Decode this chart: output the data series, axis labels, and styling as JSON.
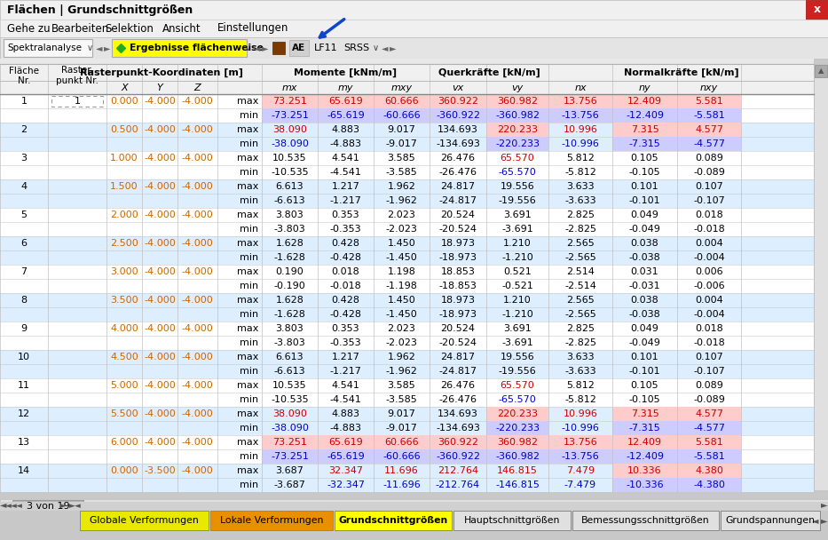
{
  "title": "Flächen | Grundschnittgrößen",
  "menu_items": [
    "Gehe zu",
    "Bearbeiten",
    "Selektion",
    "Ansicht",
    "Einstellungen"
  ],
  "toolbar_label": "Ergebnisse flächenweise",
  "tab_items": [
    "Globale Verformungen",
    "Lokale Verformungen",
    "Grundschnittgrößen",
    "Hauptschnittgrößen",
    "Bemessungsschnittgrößen",
    "Grundspannungen"
  ],
  "tab_colors": [
    "#e8e800",
    "#e89000",
    "#ffff00",
    "#e0e0e0",
    "#e0e0e0",
    "#e0e0e0"
  ],
  "page_label": "3 von 19",
  "rows": [
    [
      1,
      1,
      "0.000",
      "-4.000",
      "-4.000",
      "max",
      "73.251",
      "65.619",
      "60.666",
      "360.922",
      "360.982",
      "13.756",
      "12.409",
      "5.581"
    ],
    [
      null,
      null,
      null,
      null,
      null,
      "min",
      "-73.251",
      "-65.619",
      "-60.666",
      "-360.922",
      "-360.982",
      "-13.756",
      "-12.409",
      "-5.581"
    ],
    [
      2,
      null,
      "0.500",
      "-4.000",
      "-4.000",
      "max",
      "38.090",
      "4.883",
      "9.017",
      "134.693",
      "220.233",
      "10.996",
      "7.315",
      "4.577"
    ],
    [
      null,
      null,
      null,
      null,
      null,
      "min",
      "-38.090",
      "-4.883",
      "-9.017",
      "-134.693",
      "-220.233",
      "-10.996",
      "-7.315",
      "-4.577"
    ],
    [
      3,
      null,
      "1.000",
      "-4.000",
      "-4.000",
      "max",
      "10.535",
      "4.541",
      "3.585",
      "26.476",
      "65.570",
      "5.812",
      "0.105",
      "0.089"
    ],
    [
      null,
      null,
      null,
      null,
      null,
      "min",
      "-10.535",
      "-4.541",
      "-3.585",
      "-26.476",
      "-65.570",
      "-5.812",
      "-0.105",
      "-0.089"
    ],
    [
      4,
      null,
      "1.500",
      "-4.000",
      "-4.000",
      "max",
      "6.613",
      "1.217",
      "1.962",
      "24.817",
      "19.556",
      "3.633",
      "0.101",
      "0.107"
    ],
    [
      null,
      null,
      null,
      null,
      null,
      "min",
      "-6.613",
      "-1.217",
      "-1.962",
      "-24.817",
      "-19.556",
      "-3.633",
      "-0.101",
      "-0.107"
    ],
    [
      5,
      null,
      "2.000",
      "-4.000",
      "-4.000",
      "max",
      "3.803",
      "0.353",
      "2.023",
      "20.524",
      "3.691",
      "2.825",
      "0.049",
      "0.018"
    ],
    [
      null,
      null,
      null,
      null,
      null,
      "min",
      "-3.803",
      "-0.353",
      "-2.023",
      "-20.524",
      "-3.691",
      "-2.825",
      "-0.049",
      "-0.018"
    ],
    [
      6,
      null,
      "2.500",
      "-4.000",
      "-4.000",
      "max",
      "1.628",
      "0.428",
      "1.450",
      "18.973",
      "1.210",
      "2.565",
      "0.038",
      "0.004"
    ],
    [
      null,
      null,
      null,
      null,
      null,
      "min",
      "-1.628",
      "-0.428",
      "-1.450",
      "-18.973",
      "-1.210",
      "-2.565",
      "-0.038",
      "-0.004"
    ],
    [
      7,
      null,
      "3.000",
      "-4.000",
      "-4.000",
      "max",
      "0.190",
      "0.018",
      "1.198",
      "18.853",
      "0.521",
      "2.514",
      "0.031",
      "0.006"
    ],
    [
      null,
      null,
      null,
      null,
      null,
      "min",
      "-0.190",
      "-0.018",
      "-1.198",
      "-18.853",
      "-0.521",
      "-2.514",
      "-0.031",
      "-0.006"
    ],
    [
      8,
      null,
      "3.500",
      "-4.000",
      "-4.000",
      "max",
      "1.628",
      "0.428",
      "1.450",
      "18.973",
      "1.210",
      "2.565",
      "0.038",
      "0.004"
    ],
    [
      null,
      null,
      null,
      null,
      null,
      "min",
      "-1.628",
      "-0.428",
      "-1.450",
      "-18.973",
      "-1.210",
      "-2.565",
      "-0.038",
      "-0.004"
    ],
    [
      9,
      null,
      "4.000",
      "-4.000",
      "-4.000",
      "max",
      "3.803",
      "0.353",
      "2.023",
      "20.524",
      "3.691",
      "2.825",
      "0.049",
      "0.018"
    ],
    [
      null,
      null,
      null,
      null,
      null,
      "min",
      "-3.803",
      "-0.353",
      "-2.023",
      "-20.524",
      "-3.691",
      "-2.825",
      "-0.049",
      "-0.018"
    ],
    [
      10,
      null,
      "4.500",
      "-4.000",
      "-4.000",
      "max",
      "6.613",
      "1.217",
      "1.962",
      "24.817",
      "19.556",
      "3.633",
      "0.101",
      "0.107"
    ],
    [
      null,
      null,
      null,
      null,
      null,
      "min",
      "-6.613",
      "-1.217",
      "-1.962",
      "-24.817",
      "-19.556",
      "-3.633",
      "-0.101",
      "-0.107"
    ],
    [
      11,
      null,
      "5.000",
      "-4.000",
      "-4.000",
      "max",
      "10.535",
      "4.541",
      "3.585",
      "26.476",
      "65.570",
      "5.812",
      "0.105",
      "0.089"
    ],
    [
      null,
      null,
      null,
      null,
      null,
      "min",
      "-10.535",
      "-4.541",
      "-3.585",
      "-26.476",
      "-65.570",
      "-5.812",
      "-0.105",
      "-0.089"
    ],
    [
      12,
      null,
      "5.500",
      "-4.000",
      "-4.000",
      "max",
      "38.090",
      "4.883",
      "9.017",
      "134.693",
      "220.233",
      "10.996",
      "7.315",
      "4.577"
    ],
    [
      null,
      null,
      null,
      null,
      null,
      "min",
      "-38.090",
      "-4.883",
      "-9.017",
      "-134.693",
      "-220.233",
      "-10.996",
      "-7.315",
      "-4.577"
    ],
    [
      13,
      null,
      "6.000",
      "-4.000",
      "-4.000",
      "max",
      "73.251",
      "65.619",
      "60.666",
      "360.922",
      "360.982",
      "13.756",
      "12.409",
      "5.581"
    ],
    [
      null,
      null,
      null,
      null,
      null,
      "min",
      "-73.251",
      "-65.619",
      "-60.666",
      "-360.922",
      "-360.982",
      "-13.756",
      "-12.409",
      "-5.581"
    ],
    [
      14,
      null,
      "0.000",
      "-3.500",
      "-4.000",
      "max",
      "3.687",
      "32.347",
      "11.696",
      "212.764",
      "146.815",
      "7.479",
      "10.336",
      "4.380"
    ],
    [
      null,
      null,
      null,
      null,
      null,
      "min",
      "-3.687",
      "-32.347",
      "-11.696",
      "-212.764",
      "-146.815",
      "-7.479",
      "-10.336",
      "-4.380"
    ]
  ],
  "col_pos_max": "#cc0000",
  "col_neg_min": "#0000cc",
  "col_hi_max": "#ffcccc",
  "col_hi_min": "#ccccff",
  "col_coord": "#cc6600",
  "col_coord2": "#cc4400",
  "bg_odd": "#ddeeff",
  "bg_even": "#ffffff",
  "bg_header": "#f0f0f0"
}
